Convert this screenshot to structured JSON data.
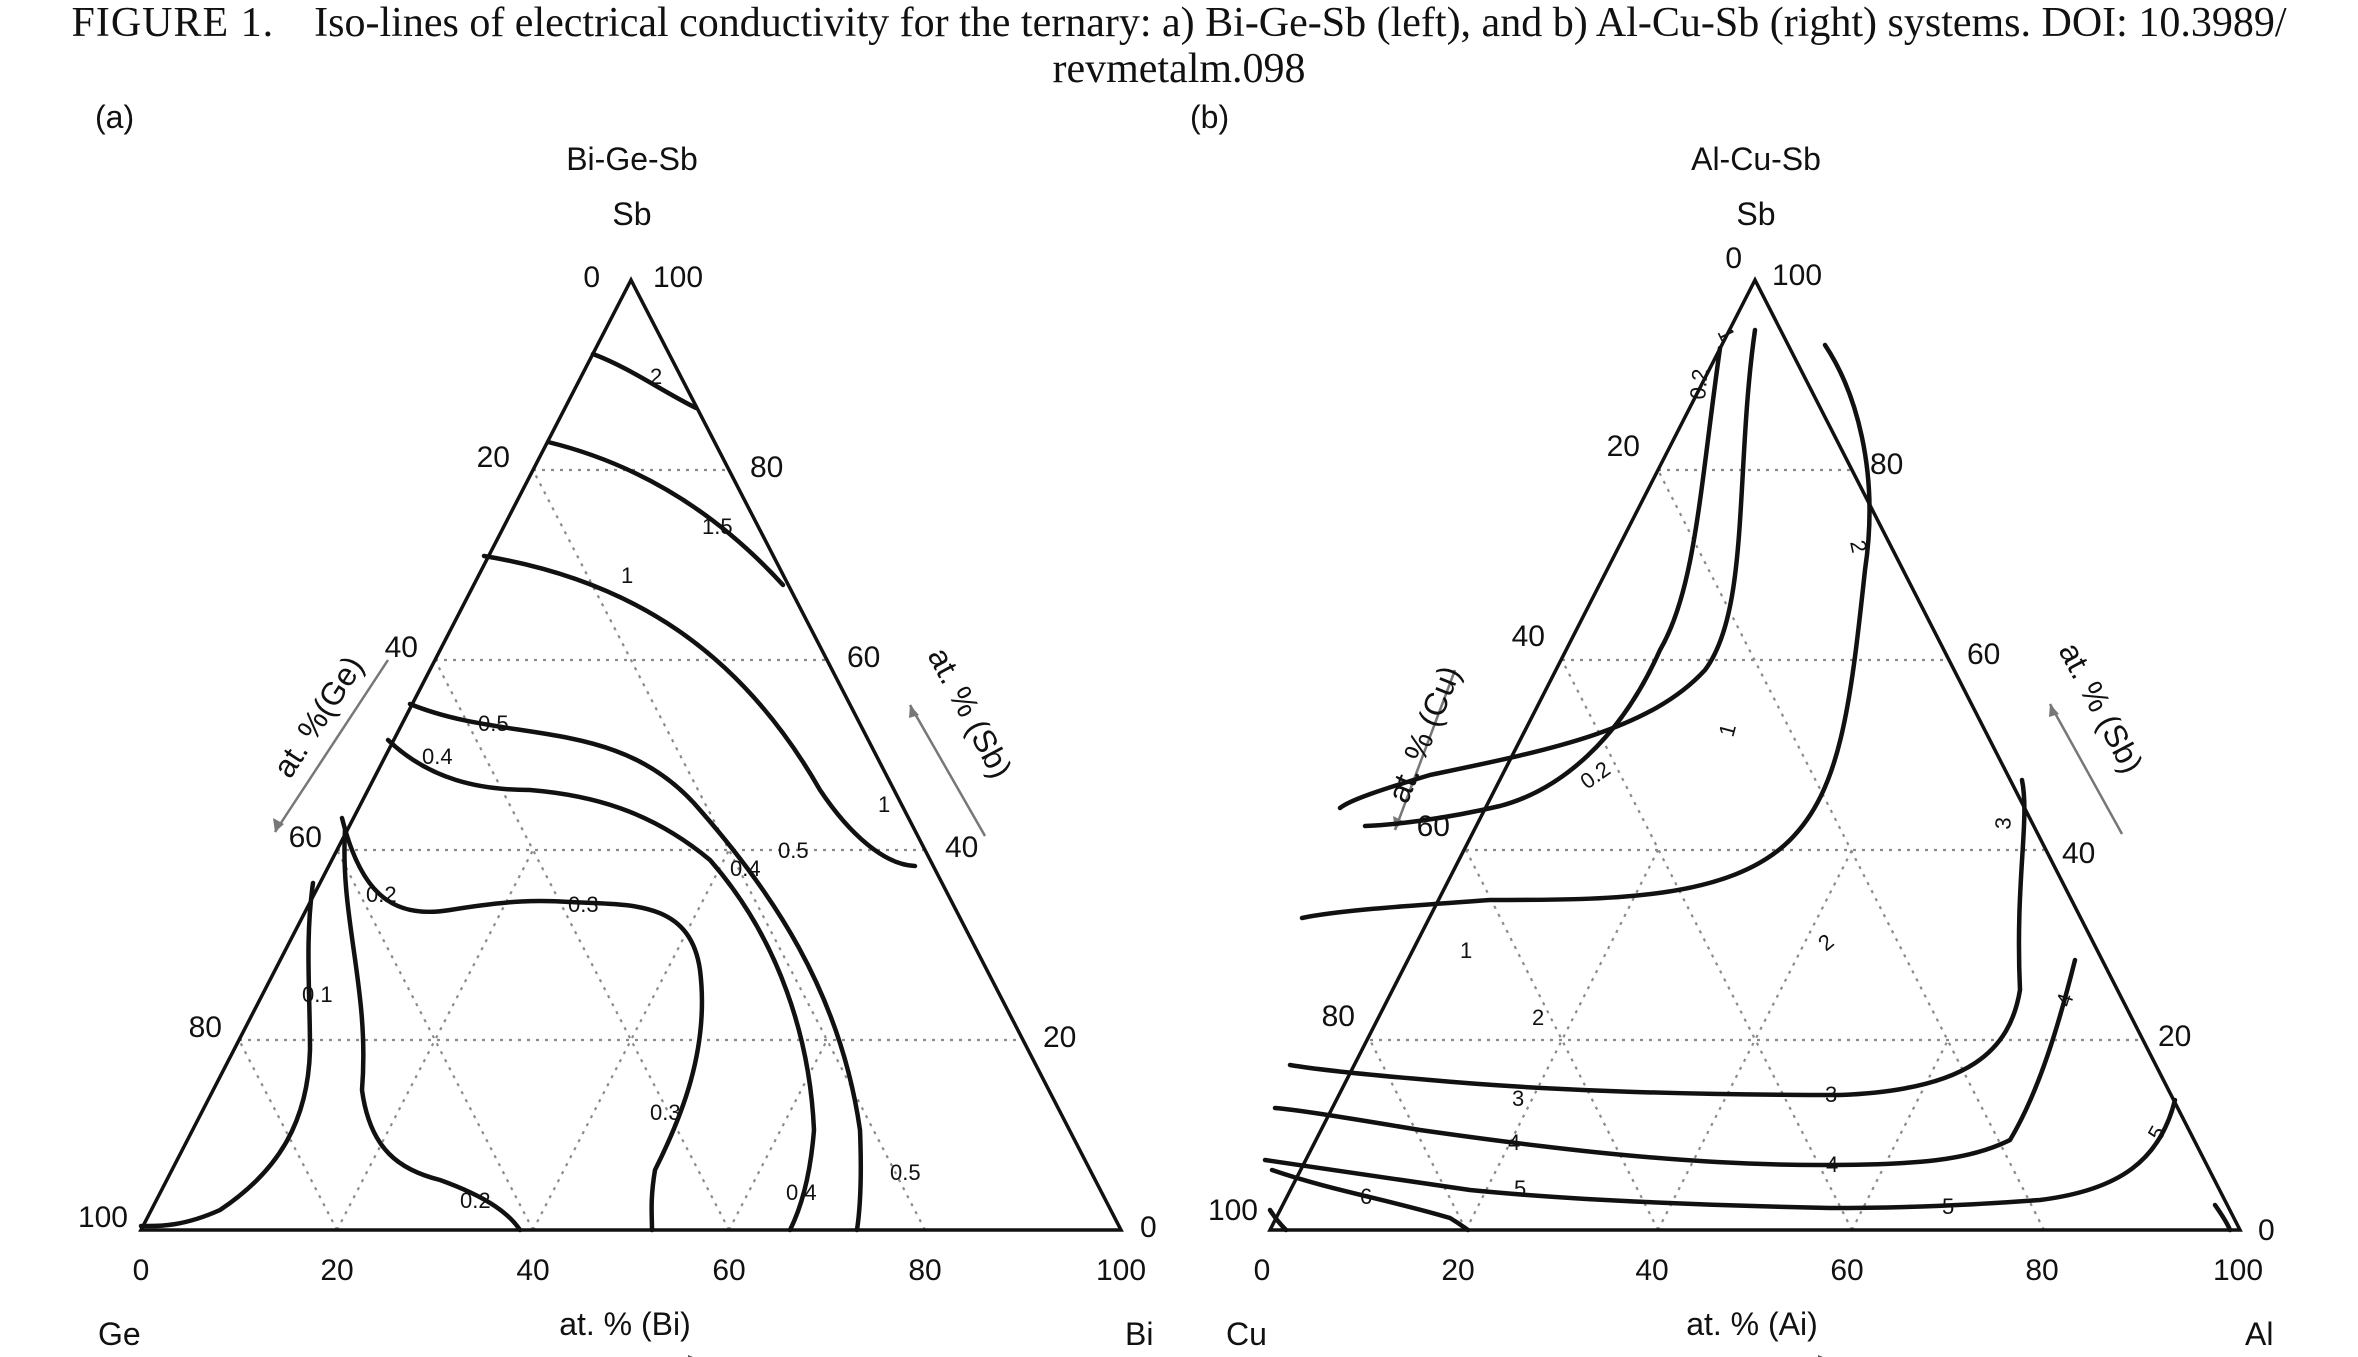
{
  "caption": {
    "figure_label": "FIGURE 1.",
    "text_line1": "Iso-lines of electrical conductivity for the ternary: a) Bi-Ge-Sb (left), and b) Al-Cu-Sb (right) systems. DOI: 10.3989/",
    "text_line2": "revmetalm.098"
  },
  "panels": [
    {
      "panel_label": "(a)",
      "system_title": "Bi-Ge-Sb",
      "apex_top": "Sb",
      "apex_left": "Ge",
      "apex_right": "Bi",
      "left_axis_label": "at. %(Ge)",
      "right_axis_label": "at. % (Sb)",
      "bottom_axis_label": "at. % (Bi)",
      "left_ticks": [
        "0",
        "20",
        "40",
        "60",
        "80",
        "100"
      ],
      "right_ticks": [
        "100",
        "80",
        "60",
        "40",
        "20",
        "0"
      ],
      "bottom_ticks": [
        "0",
        "20",
        "40",
        "60",
        "80",
        "100"
      ],
      "contour_labels": [
        "2",
        "1.5",
        "1",
        "0.5",
        "0.4",
        "1",
        "0.5",
        "0.4",
        "0.3",
        "0.2",
        "0.1",
        "0.3",
        "0.2",
        "0.4",
        "0.5"
      ]
    },
    {
      "panel_label": "(b)",
      "system_title": "Al-Cu-Sb",
      "apex_top": "Sb",
      "apex_left": "Cu",
      "apex_right": "Al",
      "left_axis_label": "at. % (Cu)",
      "right_axis_label": "at. % (Sb)",
      "bottom_axis_label": "at. % (Ai)",
      "left_ticks": [
        "0",
        "20",
        "40",
        "60",
        "80",
        "100"
      ],
      "right_ticks": [
        "100",
        "80",
        "60",
        "40",
        "20",
        "0"
      ],
      "bottom_ticks": [
        "0",
        "20",
        "40",
        "60",
        "80",
        "100"
      ],
      "contour_labels": [
        "1",
        "0.2",
        "2",
        "1",
        "0.2",
        "3",
        "1",
        "2",
        "2",
        "4",
        "3",
        "3",
        "4",
        "4",
        "5",
        "5",
        "6",
        "5"
      ]
    }
  ]
}
